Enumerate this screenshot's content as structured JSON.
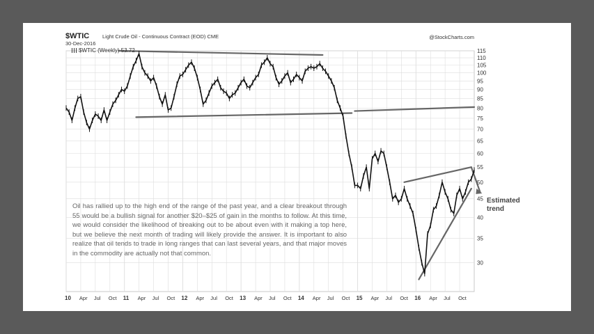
{
  "header": {
    "ticker": "$WTIC",
    "subtitle": "Light Crude Oil - Continuous Contract (EOD)",
    "exchange": "CME",
    "date": "30-Dec-2016",
    "source": "@StockCharts.com",
    "legend": "$WTIC (Weekly) 53.72"
  },
  "annotation": {
    "text": "Oil has rallied up to the high end of the range of the past year, and a clear breakout through 55 would be a bullish signal for another $20–$25 of gain in the months to follow. At this time, we would consider the likelihood of breaking out to be about even with it making a top here, but we believe the next month of trading will likely provide the answer. It is important to also realize that oil tends to trade in long ranges that can last several years, and that major moves in the commodity are actually not that common.",
    "estimated_line1": "Estimated",
    "estimated_line2": "trend"
  },
  "colors": {
    "price": "#111111",
    "trendline": "#666666",
    "grid": "#dddddd",
    "background": "#ffffff",
    "frame": "#5a5a5a"
  },
  "chart_data": {
    "type": "line",
    "series": [
      {
        "x": [
          2010.0,
          2010.05,
          2010.1,
          2010.15,
          2010.2,
          2010.25,
          2010.3,
          2010.35,
          2010.4,
          2010.45,
          2010.5,
          2010.55,
          2010.6,
          2010.65,
          2010.7,
          2010.75,
          2010.8,
          2010.85,
          2010.9,
          2010.95,
          2011.0,
          2011.05,
          2011.1,
          2011.15,
          2011.2,
          2011.25,
          2011.3,
          2011.35,
          2011.4,
          2011.45,
          2011.5,
          2011.55,
          2011.6,
          2011.65,
          2011.7,
          2011.75,
          2011.8,
          2011.85,
          2011.9,
          2011.95,
          2012.0,
          2012.05,
          2012.1,
          2012.15,
          2012.2,
          2012.25,
          2012.3,
          2012.35,
          2012.4,
          2012.45,
          2012.5,
          2012.55,
          2012.6,
          2012.65,
          2012.7,
          2012.75,
          2012.8,
          2012.85,
          2012.9,
          2012.95,
          2013.0,
          2013.05,
          2013.1,
          2013.15,
          2013.2,
          2013.25,
          2013.3,
          2013.35,
          2013.4,
          2013.45,
          2013.5,
          2013.55,
          2013.6,
          2013.65,
          2013.7,
          2013.75,
          2013.8,
          2013.85,
          2013.9,
          2013.95,
          2014.0,
          2014.05,
          2014.1,
          2014.15,
          2014.2,
          2014.25,
          2014.3,
          2014.35,
          2014.4,
          2014.45,
          2014.5,
          2014.55,
          2014.6,
          2014.65,
          2014.7,
          2014.75,
          2014.8,
          2014.85,
          2014.9,
          2014.95,
          2015.0,
          2015.05,
          2015.1,
          2015.15,
          2015.2,
          2015.25,
          2015.3,
          2015.35,
          2015.4,
          2015.45,
          2015.5,
          2015.55,
          2015.6,
          2015.65,
          2015.7,
          2015.75,
          2015.8,
          2015.85,
          2015.9,
          2015.95,
          2016.0,
          2016.05,
          2016.1,
          2016.15,
          2016.2,
          2016.25,
          2016.3,
          2016.35,
          2016.4,
          2016.45,
          2016.5,
          2016.55,
          2016.6,
          2016.65,
          2016.7,
          2016.75,
          2016.8,
          2016.85,
          2016.9,
          2016.95,
          2017.0
        ],
        "y": [
          80,
          78,
          74,
          80,
          85,
          86,
          78,
          73,
          70,
          74,
          77,
          76,
          74,
          79,
          74,
          78,
          82,
          84,
          87,
          90,
          89,
          92,
          98,
          104,
          108,
          113,
          104,
          100,
          98,
          95,
          97,
          92,
          86,
          82,
          87,
          79,
          80,
          86,
          93,
          98,
          99,
          102,
          105,
          107,
          103,
          97,
          90,
          82,
          84,
          88,
          92,
          94,
          96,
          91,
          89,
          88,
          85,
          87,
          88,
          91,
          94,
          96,
          92,
          91,
          94,
          97,
          99,
          105,
          107,
          110,
          106,
          104,
          97,
          93,
          95,
          98,
          100,
          94,
          96,
          99,
          97,
          95,
          101,
          103,
          104,
          103,
          104,
          106,
          103,
          101,
          98,
          95,
          91,
          84,
          80,
          76,
          67,
          60,
          55,
          49,
          49,
          48,
          52,
          55,
          48,
          58,
          60,
          57,
          61,
          60,
          55,
          50,
          45,
          46,
          44,
          45,
          48,
          45,
          43,
          41,
          37,
          33,
          30,
          28,
          36,
          38,
          42,
          43,
          46,
          50,
          47,
          45,
          42,
          41,
          46,
          48,
          45,
          47,
          50,
          51,
          54
        ],
        "values_note": "",
        "name": ""
      }
    ],
    "trendlines": [
      {
        "x": [
          2010.9,
          2014.4
        ],
        "y": [
          115,
          112
        ]
      },
      {
        "x": [
          2011.2,
          2014.9
        ],
        "y": [
          75.5,
          77.5
        ]
      },
      {
        "x": [
          2014.95,
          2017.0
        ],
        "y": [
          78.5,
          80.5
        ]
      },
      {
        "x": [
          2015.8,
          2016.95
        ],
        "y": [
          50,
          55
        ]
      },
      {
        "x": [
          2016.05,
          2016.95
        ],
        "y": [
          27,
          48
        ]
      },
      {
        "x": [
          2016.95,
          2017.1
        ],
        "y": [
          55,
          47
        ]
      }
    ],
    "xticks": [
      {
        "x": 2010.0,
        "label": "10",
        "year": true
      },
      {
        "x": 2010.25,
        "label": "Apr"
      },
      {
        "x": 2010.5,
        "label": "Jul"
      },
      {
        "x": 2010.75,
        "label": "Oct"
      },
      {
        "x": 2011.0,
        "label": "11",
        "year": true
      },
      {
        "x": 2011.25,
        "label": "Apr"
      },
      {
        "x": 2011.5,
        "label": "Jul"
      },
      {
        "x": 2011.75,
        "label": "Oct"
      },
      {
        "x": 2012.0,
        "label": "12",
        "year": true
      },
      {
        "x": 2012.25,
        "label": "Apr"
      },
      {
        "x": 2012.5,
        "label": "Jul"
      },
      {
        "x": 2012.75,
        "label": "Oct"
      },
      {
        "x": 2013.0,
        "label": "13",
        "year": true
      },
      {
        "x": 2013.25,
        "label": "Apr"
      },
      {
        "x": 2013.5,
        "label": "Jul"
      },
      {
        "x": 2013.75,
        "label": "Oct"
      },
      {
        "x": 2014.0,
        "label": "14",
        "year": true
      },
      {
        "x": 2014.25,
        "label": "Apr"
      },
      {
        "x": 2014.5,
        "label": "Jul"
      },
      {
        "x": 2014.75,
        "label": "Oct"
      },
      {
        "x": 2015.0,
        "label": "15",
        "year": true
      },
      {
        "x": 2015.25,
        "label": "Apr"
      },
      {
        "x": 2015.5,
        "label": "Jul"
      },
      {
        "x": 2015.75,
        "label": "Oct"
      },
      {
        "x": 2016.0,
        "label": "16",
        "year": true
      },
      {
        "x": 2016.25,
        "label": "Apr"
      },
      {
        "x": 2016.5,
        "label": "Jul"
      },
      {
        "x": 2016.75,
        "label": "Oct"
      }
    ],
    "yticks": [
      30,
      35,
      40,
      45,
      50,
      55,
      60,
      65,
      70,
      75,
      80,
      85,
      90,
      95,
      100,
      105,
      110,
      115
    ],
    "xlim": [
      2010.0,
      2017.0
    ],
    "ylim": [
      25,
      115
    ],
    "yscale": "log",
    "yaxis_side": "right",
    "grid": true,
    "title": "",
    "xlabel": "",
    "ylabel": ""
  }
}
